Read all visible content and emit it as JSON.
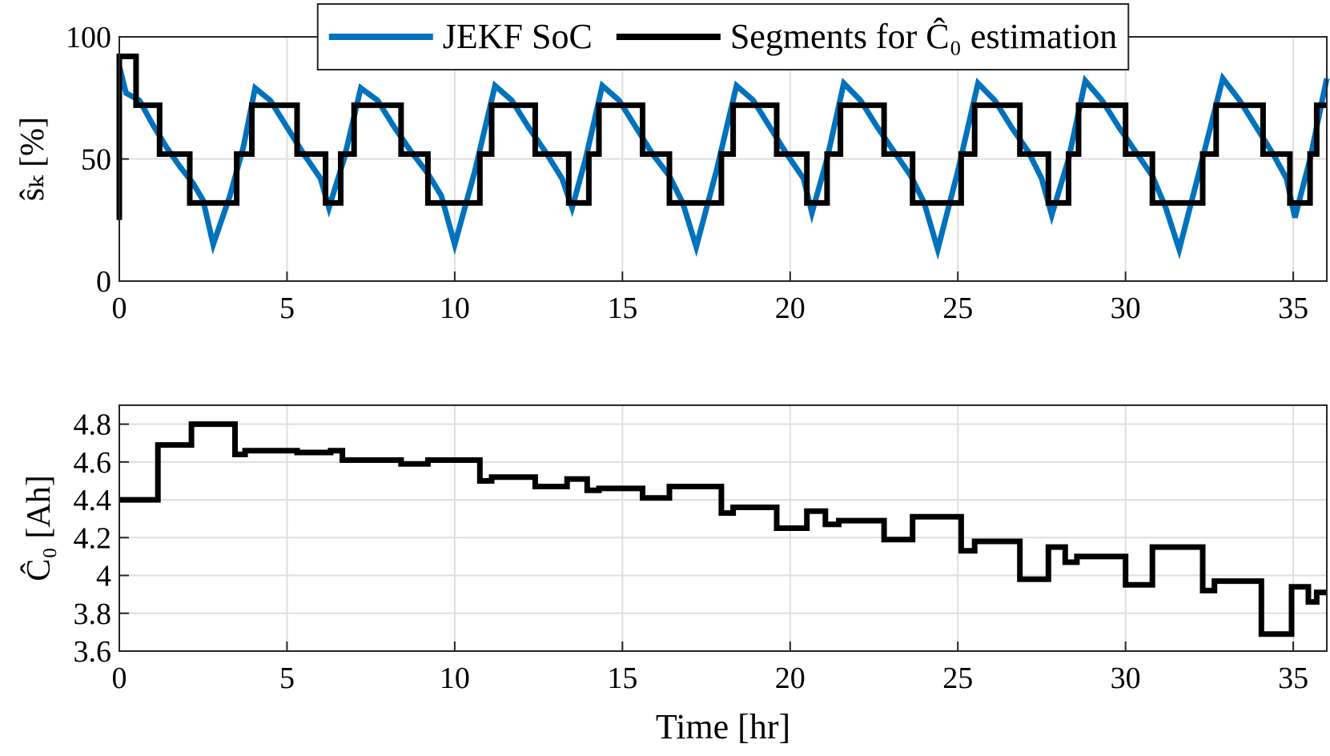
{
  "chart_data": [
    {
      "type": "line",
      "ylabel": "ŝₖ [%]",
      "xlim": [
        0,
        36
      ],
      "xticks": [
        0,
        5,
        10,
        15,
        20,
        25,
        30,
        35
      ],
      "ylim": [
        0,
        100
      ],
      "yticks": [
        0,
        50,
        100
      ],
      "grid": true,
      "legend": "north",
      "series": [
        {
          "name": "JEKF SoC",
          "color": "#0072bd",
          "x": [
            0,
            0.2,
            0.6,
            1.0,
            1.4,
            1.8,
            2.2,
            2.5,
            2.8,
            3.3,
            3.7,
            4.05,
            4.5,
            5.0,
            5.5,
            6.0,
            6.25,
            6.7,
            7.2,
            7.7,
            8.2,
            8.7,
            9.2,
            9.6,
            10.0,
            10.6,
            11.2,
            11.7,
            12.2,
            12.7,
            13.2,
            13.5,
            13.9,
            14.4,
            14.9,
            15.4,
            15.9,
            16.4,
            16.8,
            17.2,
            17.8,
            18.4,
            18.9,
            19.4,
            19.9,
            20.4,
            20.65,
            21.1,
            21.6,
            22.1,
            22.6,
            23.1,
            23.6,
            24.0,
            24.4,
            25.0,
            25.6,
            26.1,
            26.6,
            27.1,
            27.5,
            27.8,
            28.3,
            28.8,
            29.3,
            29.8,
            30.3,
            30.8,
            31.2,
            31.6,
            32.2,
            32.9,
            33.4,
            33.9,
            34.4,
            34.8,
            35.05,
            35.5,
            36
          ],
          "values": [
            88,
            77,
            74,
            64,
            55,
            47,
            40,
            33,
            15,
            35,
            55,
            79,
            74,
            63,
            52,
            42,
            30,
            50,
            79,
            74,
            63,
            53,
            44,
            35,
            15,
            45,
            80,
            74,
            63,
            53,
            42,
            30,
            50,
            80,
            74,
            63,
            52,
            43,
            32,
            14,
            45,
            80,
            74,
            63,
            52,
            42,
            28,
            50,
            81,
            74,
            63,
            53,
            43,
            32,
            13,
            45,
            81,
            74,
            63,
            53,
            42,
            27,
            50,
            82,
            74,
            63,
            53,
            43,
            30,
            13,
            45,
            83,
            74,
            63,
            52,
            42,
            26,
            50,
            83
          ]
        },
        {
          "name": "Segments for Ĉ₀ estimation",
          "color": "#000000",
          "x": [
            0,
            0,
            0.5,
            0.5,
            1.2,
            1.2,
            2.1,
            2.1,
            3.5,
            3.5,
            3.95,
            3.95,
            5.3,
            5.3,
            6.15,
            6.15,
            6.6,
            6.6,
            7.0,
            7.0,
            8.4,
            8.4,
            9.2,
            9.2,
            10.75,
            10.75,
            11.1,
            11.1,
            12.4,
            12.4,
            13.4,
            13.4,
            14.0,
            14.0,
            14.3,
            14.3,
            15.6,
            15.6,
            16.4,
            16.4,
            17.95,
            17.95,
            18.3,
            18.3,
            19.6,
            19.6,
            20.5,
            20.5,
            21.1,
            21.1,
            21.5,
            21.5,
            22.8,
            22.8,
            23.65,
            23.65,
            25.1,
            25.1,
            25.5,
            25.5,
            26.85,
            26.85,
            27.7,
            27.7,
            28.3,
            28.3,
            28.6,
            28.6,
            30.0,
            30.0,
            30.8,
            30.8,
            32.3,
            32.3,
            32.7,
            32.7,
            34.1,
            34.1,
            34.9,
            34.9,
            35.5,
            35.5,
            35.7,
            35.7,
            36
          ],
          "values": [
            25,
            92,
            92,
            72,
            72,
            52,
            52,
            32,
            32,
            52,
            52,
            72,
            72,
            52,
            52,
            32,
            32,
            52,
            52,
            72,
            72,
            52,
            52,
            32,
            32,
            52,
            52,
            72,
            72,
            52,
            52,
            32,
            32,
            52,
            52,
            72,
            72,
            52,
            52,
            32,
            32,
            52,
            52,
            72,
            72,
            52,
            52,
            32,
            32,
            52,
            52,
            72,
            72,
            52,
            52,
            32,
            32,
            52,
            52,
            72,
            72,
            52,
            52,
            32,
            32,
            52,
            52,
            72,
            72,
            52,
            52,
            32,
            32,
            52,
            52,
            72,
            72,
            52,
            52,
            32,
            32,
            52,
            52,
            72,
            72
          ]
        }
      ]
    },
    {
      "type": "line",
      "xlabel": "Time [hr]",
      "ylabel": "Ĉ₀ [Ah]",
      "xlim": [
        0,
        36
      ],
      "xticks": [
        0,
        5,
        10,
        15,
        20,
        25,
        30,
        35
      ],
      "ylim": [
        3.6,
        4.9
      ],
      "yticks": [
        3.6,
        3.8,
        4,
        4.2,
        4.4,
        4.6,
        4.8
      ],
      "grid": true,
      "series": [
        {
          "color": "#000000",
          "x": [
            0,
            1.15,
            1.15,
            2.15,
            2.15,
            3.45,
            3.45,
            3.75,
            3.75,
            5.3,
            5.3,
            6.3,
            6.3,
            6.65,
            6.65,
            8.4,
            8.4,
            9.2,
            9.2,
            10.75,
            10.75,
            11.1,
            11.1,
            12.4,
            12.4,
            13.35,
            13.35,
            13.95,
            13.95,
            14.3,
            14.3,
            15.6,
            15.6,
            16.4,
            16.4,
            17.95,
            17.95,
            18.3,
            18.3,
            19.6,
            19.6,
            20.5,
            20.5,
            21.05,
            21.05,
            21.45,
            21.45,
            22.8,
            22.8,
            23.65,
            23.65,
            25.1,
            25.1,
            25.5,
            25.5,
            26.85,
            26.85,
            27.7,
            27.7,
            28.2,
            28.2,
            28.55,
            28.55,
            30.0,
            30.0,
            30.8,
            30.8,
            32.3,
            32.3,
            32.65,
            32.65,
            34.05,
            34.05,
            34.95,
            34.95,
            35.45,
            35.45,
            35.7,
            35.7,
            36
          ],
          "values": [
            4.4,
            4.4,
            4.69,
            4.69,
            4.8,
            4.8,
            4.64,
            4.64,
            4.66,
            4.66,
            4.65,
            4.65,
            4.66,
            4.66,
            4.61,
            4.61,
            4.59,
            4.59,
            4.61,
            4.61,
            4.5,
            4.5,
            4.52,
            4.52,
            4.47,
            4.47,
            4.51,
            4.51,
            4.45,
            4.45,
            4.46,
            4.46,
            4.41,
            4.41,
            4.47,
            4.47,
            4.33,
            4.33,
            4.36,
            4.36,
            4.25,
            4.25,
            4.34,
            4.34,
            4.27,
            4.27,
            4.29,
            4.29,
            4.19,
            4.19,
            4.31,
            4.31,
            4.13,
            4.13,
            4.18,
            4.18,
            3.98,
            3.98,
            4.15,
            4.15,
            4.07,
            4.07,
            4.1,
            4.1,
            3.95,
            3.95,
            4.15,
            4.15,
            3.92,
            3.92,
            3.97,
            3.97,
            3.69,
            3.69,
            3.94,
            3.94,
            3.86,
            3.86,
            3.91,
            3.91
          ]
        }
      ]
    }
  ]
}
